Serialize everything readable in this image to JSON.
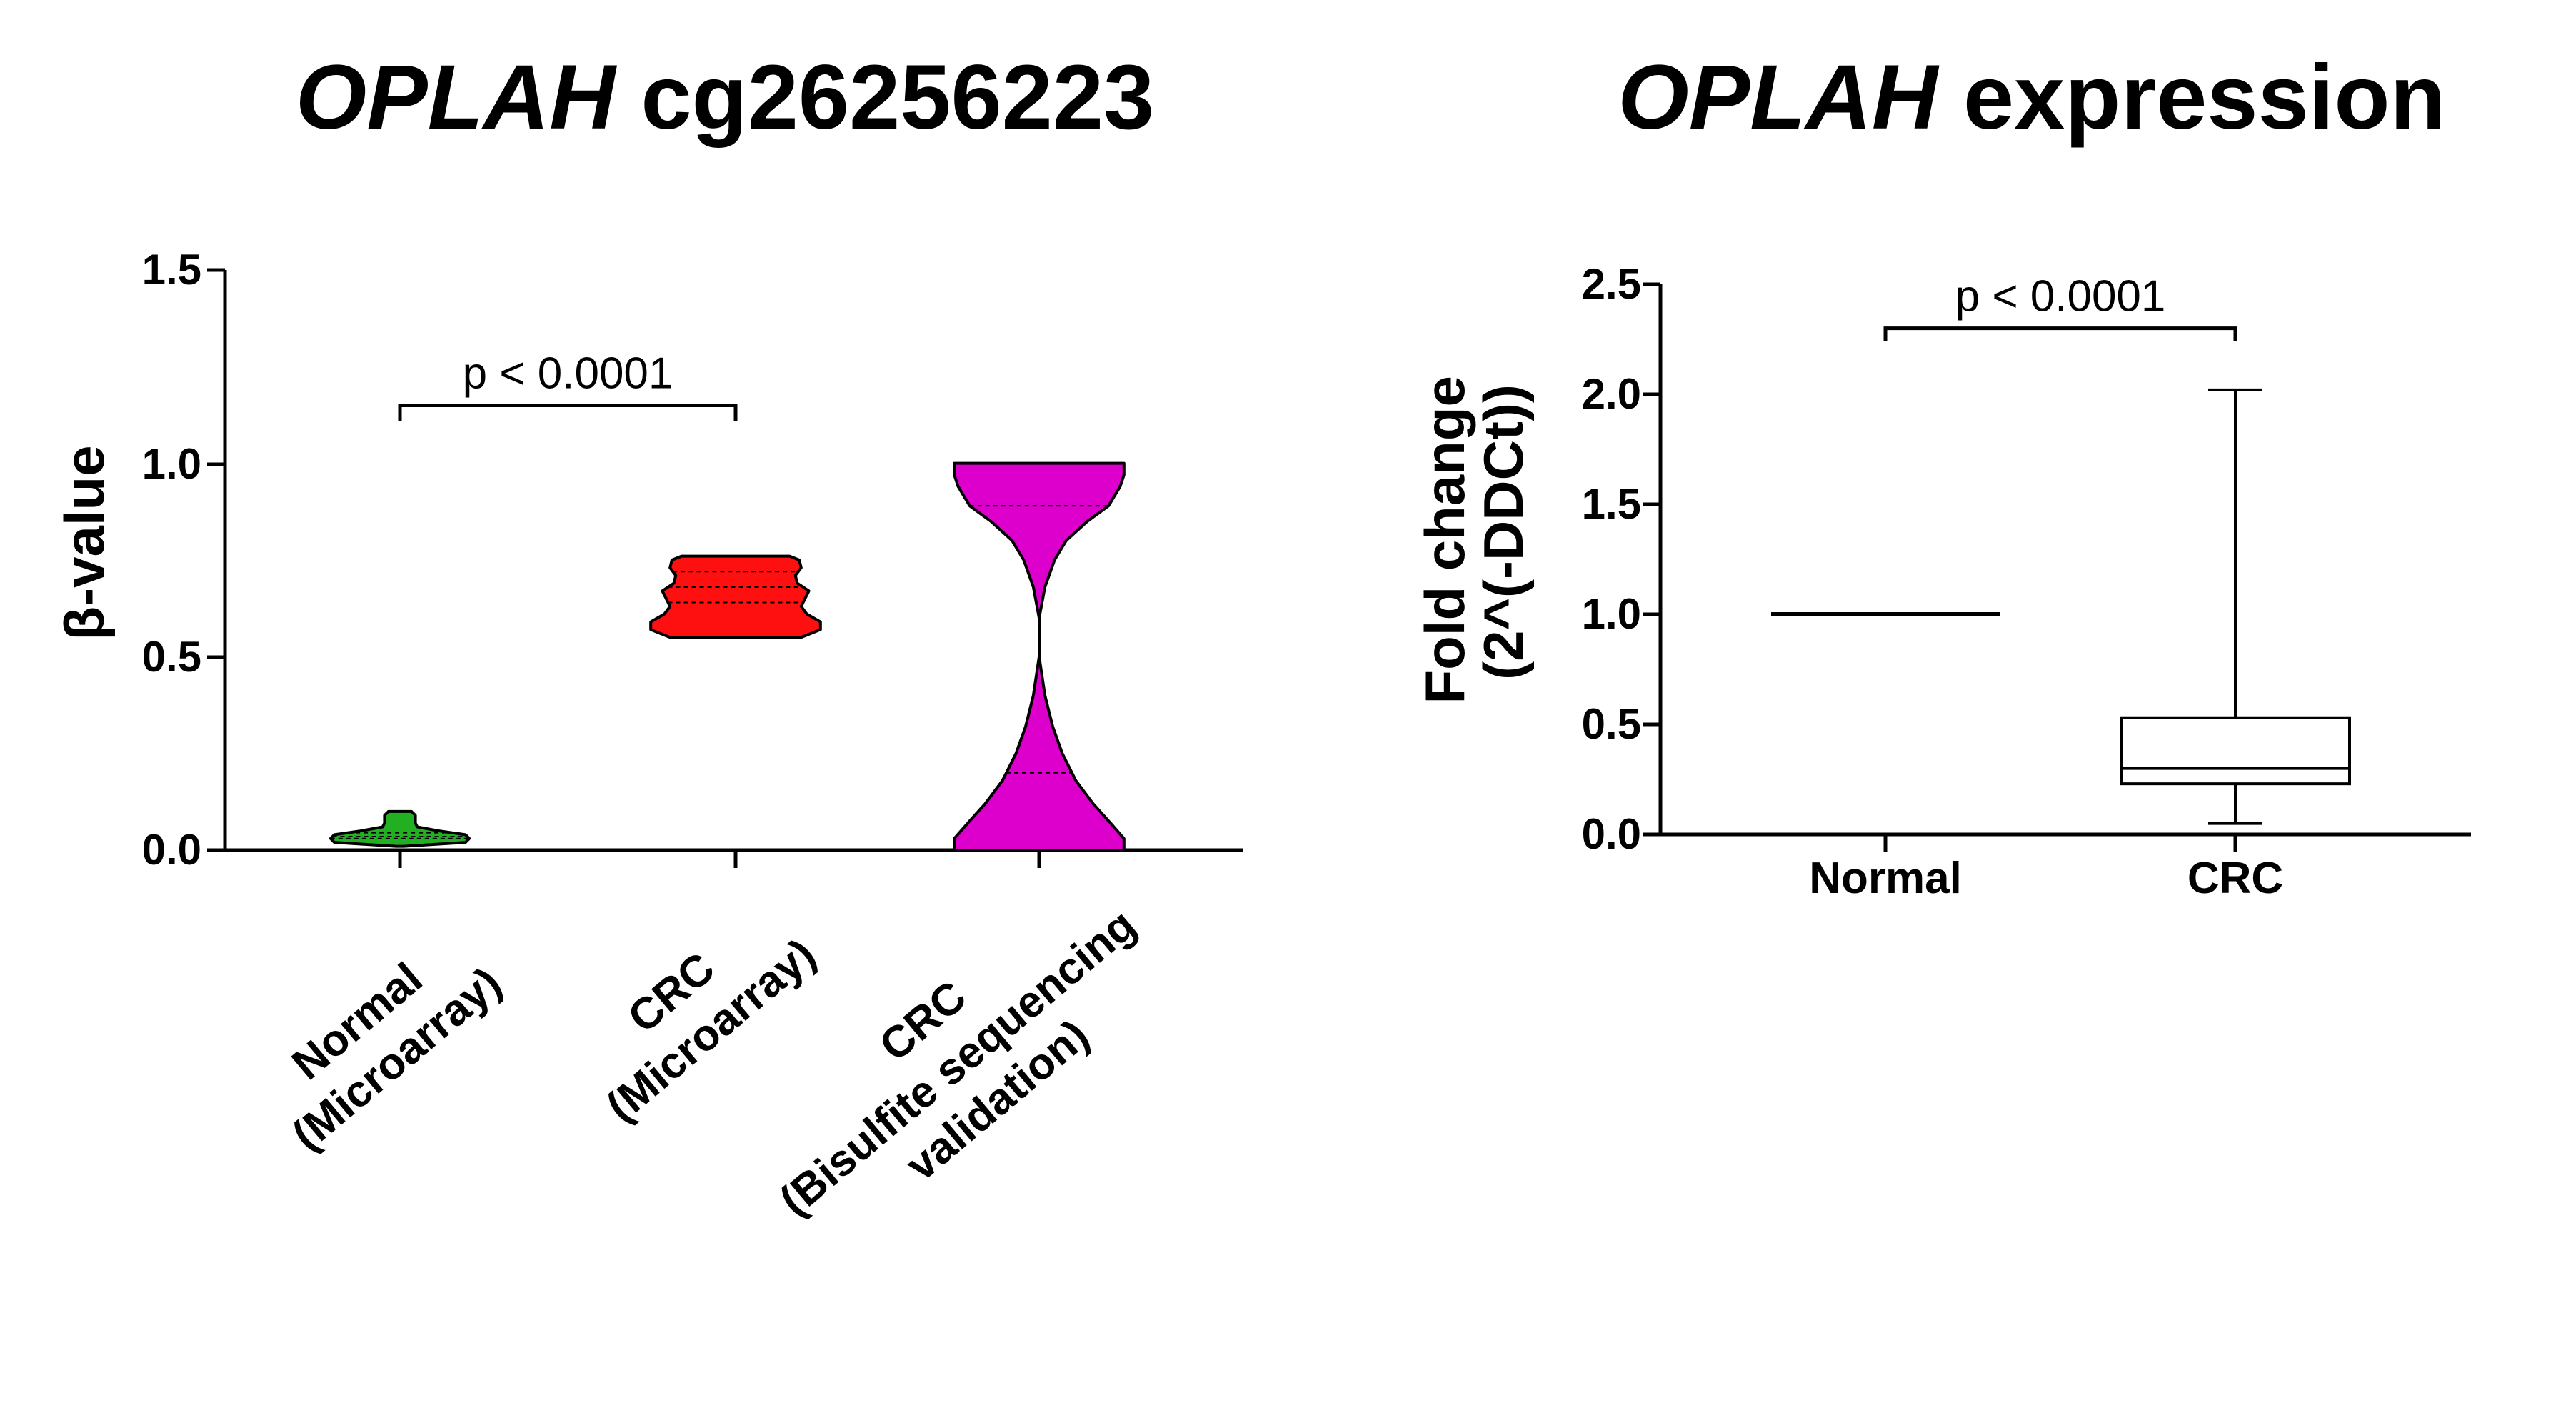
{
  "chart_data": [
    {
      "type": "violin",
      "title_italic": "OPLAH",
      "title_rest": " cg26256223",
      "ylabel": "β-value",
      "ylim": [
        0,
        1.5
      ],
      "yticks": [
        "0.0",
        "0.5",
        "1.0",
        "1.5"
      ],
      "groups": [
        {
          "label_lines": [
            "Normal",
            "(Microarray)"
          ],
          "color": "#22B022",
          "min": 0.01,
          "max": 0.1,
          "quartiles": [
            0.03,
            0.035,
            0.045
          ],
          "profile": [
            [
              0.01,
              0.02
            ],
            [
              0.02,
              0.34
            ],
            [
              0.03,
              0.36
            ],
            [
              0.04,
              0.34
            ],
            [
              0.05,
              0.2
            ],
            [
              0.06,
              0.09
            ],
            [
              0.07,
              0.08
            ],
            [
              0.08,
              0.08
            ],
            [
              0.09,
              0.08
            ],
            [
              0.1,
              0.06
            ]
          ]
        },
        {
          "label_lines": [
            "CRC",
            "(Microarray)"
          ],
          "color": "#FF1010",
          "min": 0.55,
          "max": 0.76,
          "quartiles": [
            0.64,
            0.68,
            0.72
          ],
          "profile": [
            [
              0.55,
              0.34
            ],
            [
              0.57,
              0.44
            ],
            [
              0.59,
              0.44
            ],
            [
              0.61,
              0.37
            ],
            [
              0.63,
              0.34
            ],
            [
              0.65,
              0.36
            ],
            [
              0.67,
              0.38
            ],
            [
              0.69,
              0.32
            ],
            [
              0.71,
              0.31
            ],
            [
              0.73,
              0.34
            ],
            [
              0.75,
              0.33
            ],
            [
              0.76,
              0.28
            ]
          ]
        },
        {
          "label_lines": [
            "CRC",
            "(Bisulfite sequencing",
            "validation)"
          ],
          "color": "#DD00CC",
          "min": 0.0,
          "max": 1.0,
          "quartiles": [
            0.2,
            0.55,
            0.89
          ],
          "profile": [
            [
              0.0,
              0.44
            ],
            [
              0.03,
              0.44
            ],
            [
              0.07,
              0.37
            ],
            [
              0.12,
              0.28
            ],
            [
              0.18,
              0.19
            ],
            [
              0.25,
              0.12
            ],
            [
              0.32,
              0.07
            ],
            [
              0.4,
              0.03
            ],
            [
              0.5,
              0.0
            ],
            [
              0.6,
              0.0
            ],
            [
              0.68,
              0.03
            ],
            [
              0.75,
              0.08
            ],
            [
              0.8,
              0.14
            ],
            [
              0.85,
              0.25
            ],
            [
              0.89,
              0.36
            ],
            [
              0.94,
              0.42
            ],
            [
              0.97,
              0.44
            ],
            [
              1.0,
              0.44
            ]
          ]
        }
      ],
      "comparison": {
        "from": 0,
        "to": 1,
        "label": "p  < 0.0001",
        "y": 1.15
      }
    },
    {
      "type": "box",
      "title_italic": "OPLAH",
      "title_rest": " expression",
      "ylabel_lines": [
        "Fold change",
        "(2^(-DDCt))"
      ],
      "ylim": [
        0,
        2.5
      ],
      "yticks": [
        "0.0",
        "0.5",
        "1.0",
        "1.5",
        "2.0",
        "2.5"
      ],
      "groups": [
        {
          "label": "Normal",
          "min": 1.0,
          "q1": 1.0,
          "median": 1.0,
          "q3": 1.0,
          "max": 1.0
        },
        {
          "label": "CRC",
          "min": 0.05,
          "q1": 0.23,
          "median": 0.3,
          "q3": 0.53,
          "max": 2.02
        }
      ],
      "comparison": {
        "from": 0,
        "to": 1,
        "label": "p < 0.0001",
        "y": 2.3
      }
    }
  ]
}
